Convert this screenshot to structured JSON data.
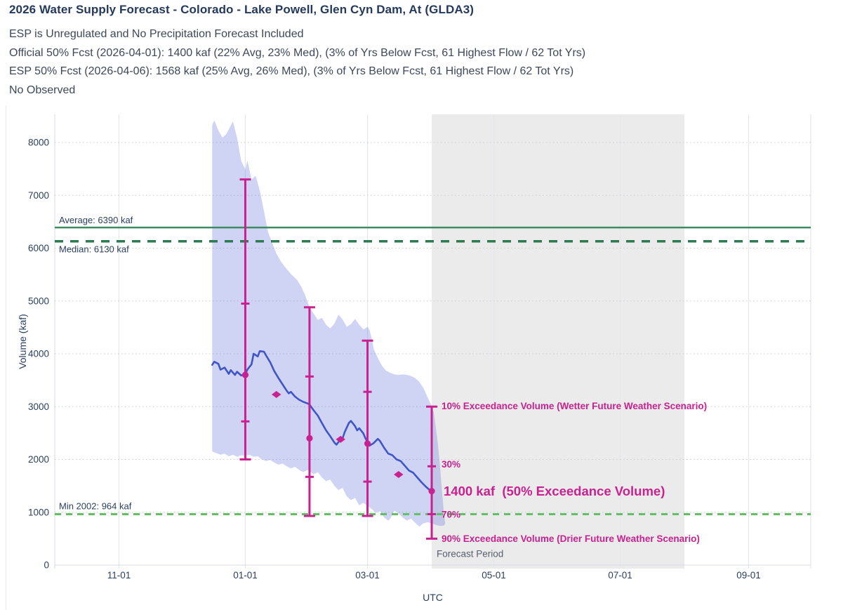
{
  "header": {
    "title": "2026 Water Supply Forecast - Colorado - Lake Powell, Glen Cyn Dam, At (GLDA3)",
    "subtitle_lines": [
      "ESP is Unregulated and No Precipitation Forecast Included",
      "Official 50% Fcst (2026-04-01): 1400 kaf (22% Avg, 23% Med), (3% of Yrs Below Fcst, 61 Highest Flow / 62 Tot Yrs)",
      "ESP 50% Fcst (2026-04-06): 1568 kaf (25% Avg, 26% Med), (3% of Yrs Below Fcst, 61 Highest Flow / 62 Tot Yrs)",
      "No Observed"
    ]
  },
  "chart_data": {
    "type": "line",
    "xlabel": "UTC",
    "ylabel": "Volume (kaf)",
    "ylim": [
      0,
      8530
    ],
    "x_axis": {
      "title": "UTC",
      "ticks": [
        {
          "label": "11-01",
          "day": 31
        },
        {
          "label": "01-01",
          "day": 92
        },
        {
          "label": "03-01",
          "day": 151
        },
        {
          "label": "05-01",
          "day": 212
        },
        {
          "label": "07-01",
          "day": 273
        },
        {
          "label": "09-01",
          "day": 335
        }
      ],
      "gridline_days": [
        31,
        92,
        151,
        212,
        273,
        335,
        365
      ]
    },
    "y_axis": {
      "title": "Volume (kaf)",
      "ticks": [
        0,
        1000,
        2000,
        3000,
        4000,
        5000,
        6000,
        7000,
        8000
      ]
    },
    "colors": {
      "esp_line": "#4055c8",
      "band": "rgba(106,120,220,0.32)",
      "error_bar": "#ca2190",
      "average": "#3e8b61",
      "median": "#2e7a52",
      "min": "#5ec263",
      "grid_dot": "#c8cbd2",
      "grid_solid": "#e4e7ec",
      "axis_line": "#dcdfe5",
      "forecast_region": "rgba(128,128,132,0.16)",
      "text": "#2a3f5f"
    },
    "reference_lines": [
      {
        "name": "average",
        "label": "Average: 6390 kaf",
        "value": 6390,
        "style": "solid",
        "width": 2.5,
        "dash": "",
        "color": "#3e8b61",
        "label_dy": -6
      },
      {
        "name": "median",
        "label": "Median: 6130 kaf",
        "value": 6130,
        "style": "dashed",
        "width": 3.5,
        "dash": "12 10",
        "color": "#2e7a52",
        "label_dy": 16
      },
      {
        "name": "min",
        "label": "Min 2002: 964 kaf",
        "value": 964,
        "style": "dashed",
        "width": 3,
        "dash": "9 7",
        "color": "#5ec263",
        "label_dy": -7
      }
    ],
    "forecast_period": {
      "label": "Forecast Period",
      "start": "04-01",
      "end": "08-01",
      "start_day": 182,
      "end_day": 304
    },
    "esp_band": {
      "upper": [
        [
          76,
          8330
        ],
        [
          77,
          8420
        ],
        [
          79,
          8230
        ],
        [
          81,
          8090
        ],
        [
          83,
          8170
        ],
        [
          86,
          8400
        ],
        [
          88,
          8090
        ],
        [
          90,
          7650
        ],
        [
          92,
          7490
        ],
        [
          93,
          7660
        ],
        [
          95,
          7300
        ],
        [
          97,
          7370
        ],
        [
          99,
          7090
        ],
        [
          101,
          6700
        ],
        [
          103,
          6300
        ],
        [
          105,
          6100
        ],
        [
          107,
          5900
        ],
        [
          109,
          5760
        ],
        [
          111,
          5650
        ],
        [
          114,
          5510
        ],
        [
          117,
          5400
        ],
        [
          119,
          5270
        ],
        [
          121,
          5100
        ],
        [
          123,
          4880
        ],
        [
          125,
          4760
        ],
        [
          127,
          4640
        ],
        [
          129,
          4680
        ],
        [
          131,
          4550
        ],
        [
          133,
          4480
        ],
        [
          135,
          4570
        ],
        [
          137,
          4740
        ],
        [
          139,
          4650
        ],
        [
          141,
          4510
        ],
        [
          143,
          4560
        ],
        [
          145,
          4660
        ],
        [
          147,
          4550
        ],
        [
          149,
          4460
        ],
        [
          151,
          4510
        ],
        [
          152,
          4450
        ],
        [
          153,
          4290
        ],
        [
          154,
          4090
        ],
        [
          156,
          3920
        ],
        [
          158,
          3770
        ],
        [
          160,
          3680
        ],
        [
          162,
          3640
        ],
        [
          164,
          3610
        ],
        [
          166,
          3600
        ],
        [
          168,
          3610
        ],
        [
          170,
          3600
        ],
        [
          172,
          3580
        ],
        [
          174,
          3540
        ],
        [
          176,
          3470
        ],
        [
          178,
          3350
        ],
        [
          180,
          3180
        ],
        [
          182,
          3010
        ],
        [
          183,
          2890
        ],
        [
          184,
          2600
        ],
        [
          185,
          2290
        ],
        [
          186,
          1880
        ],
        [
          187,
          1380
        ],
        [
          188,
          940
        ],
        [
          188.5,
          790
        ]
      ],
      "lower": [
        [
          76,
          2150
        ],
        [
          78,
          2120
        ],
        [
          80,
          2090
        ],
        [
          82,
          2110
        ],
        [
          84,
          2060
        ],
        [
          86,
          2090
        ],
        [
          88,
          2050
        ],
        [
          90,
          2080
        ],
        [
          92,
          2070
        ],
        [
          94,
          2090
        ],
        [
          96,
          2050
        ],
        [
          98,
          2060
        ],
        [
          100,
          2000
        ],
        [
          102,
          1970
        ],
        [
          104,
          1990
        ],
        [
          106,
          1940
        ],
        [
          108,
          1900
        ],
        [
          110,
          1920
        ],
        [
          112,
          1870
        ],
        [
          114,
          1830
        ],
        [
          116,
          1860
        ],
        [
          118,
          1800
        ],
        [
          120,
          1760
        ],
        [
          122,
          1800
        ],
        [
          123,
          1780
        ],
        [
          125,
          1720
        ],
        [
          127,
          1760
        ],
        [
          129,
          1660
        ],
        [
          131,
          1590
        ],
        [
          133,
          1620
        ],
        [
          135,
          1500
        ],
        [
          137,
          1420
        ],
        [
          139,
          1460
        ],
        [
          141,
          1300
        ],
        [
          143,
          1230
        ],
        [
          145,
          1270
        ],
        [
          147,
          1130
        ],
        [
          149,
          1180
        ],
        [
          151,
          1120
        ],
        [
          153,
          1060
        ],
        [
          155,
          990
        ],
        [
          157,
          1020
        ],
        [
          159,
          900
        ],
        [
          161,
          840
        ],
        [
          162,
          880
        ],
        [
          164,
          1030
        ],
        [
          166,
          980
        ],
        [
          168,
          900
        ],
        [
          170,
          840
        ],
        [
          172,
          880
        ],
        [
          174,
          800
        ],
        [
          176,
          730
        ],
        [
          178,
          790
        ],
        [
          180,
          810
        ],
        [
          182,
          790
        ],
        [
          184,
          760
        ],
        [
          186,
          740
        ],
        [
          188,
          750
        ],
        [
          188.5,
          790
        ]
      ]
    },
    "esp_median_line": [
      [
        76,
        3790
      ],
      [
        77,
        3850
      ],
      [
        79,
        3810
      ],
      [
        80,
        3700
      ],
      [
        82,
        3740
      ],
      [
        84,
        3620
      ],
      [
        85,
        3690
      ],
      [
        87,
        3600
      ],
      [
        88,
        3660
      ],
      [
        90,
        3590
      ],
      [
        92,
        3615
      ],
      [
        93,
        3700
      ],
      [
        95,
        3800
      ],
      [
        96,
        4000
      ],
      [
        98,
        3950
      ],
      [
        99,
        4050
      ],
      [
        101,
        4040
      ],
      [
        102,
        3970
      ],
      [
        104,
        3840
      ],
      [
        106,
        3670
      ],
      [
        108,
        3540
      ],
      [
        110,
        3420
      ],
      [
        112,
        3300
      ],
      [
        113,
        3250
      ],
      [
        114,
        3280
      ],
      [
        116,
        3190
      ],
      [
        118,
        3130
      ],
      [
        120,
        3090
      ],
      [
        122,
        3060
      ],
      [
        123,
        3040
      ],
      [
        125,
        2930
      ],
      [
        127,
        2830
      ],
      [
        129,
        2690
      ],
      [
        131,
        2550
      ],
      [
        133,
        2440
      ],
      [
        135,
        2320
      ],
      [
        136,
        2280
      ],
      [
        137,
        2330
      ],
      [
        139,
        2400
      ],
      [
        140,
        2520
      ],
      [
        142,
        2690
      ],
      [
        143,
        2730
      ],
      [
        145,
        2630
      ],
      [
        146,
        2550
      ],
      [
        147,
        2590
      ],
      [
        149,
        2490
      ],
      [
        150,
        2400
      ],
      [
        151,
        2330
      ],
      [
        152,
        2260
      ],
      [
        154,
        2310
      ],
      [
        156,
        2390
      ],
      [
        157,
        2350
      ],
      [
        159,
        2220
      ],
      [
        161,
        2110
      ],
      [
        163,
        2080
      ],
      [
        165,
        2000
      ],
      [
        167,
        1970
      ],
      [
        169,
        1880
      ],
      [
        171,
        1790
      ],
      [
        173,
        1750
      ],
      [
        175,
        1660
      ],
      [
        177,
        1570
      ],
      [
        179,
        1490
      ],
      [
        181,
        1420
      ],
      [
        182,
        1370
      ]
    ],
    "error_bars": [
      {
        "date": "01-01",
        "day": 92,
        "p10": 7300,
        "p30": 4950,
        "p50": 3600,
        "p70": 2720,
        "p90": 2000
      },
      {
        "date": "02-01",
        "day": 123,
        "p10": 4880,
        "p30": 3570,
        "p50": 2400,
        "p70": 1670,
        "p90": 930
      },
      {
        "date": "03-01",
        "day": 151,
        "p10": 4250,
        "p30": 3280,
        "p50": 2300,
        "p70": 1580,
        "p90": 930
      },
      {
        "date": "04-01",
        "day": 182,
        "p10": 3000,
        "p30": 1870,
        "p50": 1400,
        "p70": 964,
        "p90": 500
      }
    ],
    "extra_markers": [
      {
        "date": "01-15",
        "day": 107,
        "value": 3230
      },
      {
        "date": "02-15",
        "day": 138,
        "value": 2380
      },
      {
        "date": "03-15",
        "day": 166,
        "value": 1715
      }
    ],
    "annotations": [
      {
        "id": "p10-label",
        "text": "10% Exceedance Volume (Wetter Future Weather Scenario)",
        "kaf": 3010,
        "dx": 14,
        "cls": "ann-pink"
      },
      {
        "id": "p30-label",
        "text": "30%",
        "kaf": 1905,
        "dx": 14,
        "cls": "ann-pink"
      },
      {
        "id": "p50-label",
        "text": "1400 kaf  (50% Exceedance Volume)",
        "kaf": 1400,
        "dx": 17,
        "cls": "ann-big"
      },
      {
        "id": "p70-label",
        "text": "70%",
        "kaf": 955,
        "dx": 14,
        "cls": "ann-pink"
      },
      {
        "id": "p90-label",
        "text": "90% Exceedance Volume (Drier Future Weather Scenario)",
        "kaf": 500,
        "dx": 14,
        "cls": "ann-pink"
      },
      {
        "id": "forecast-period-label",
        "text": "Forecast Period",
        "kaf": 215,
        "dx": 7,
        "cls": "ann-gray"
      }
    ]
  }
}
